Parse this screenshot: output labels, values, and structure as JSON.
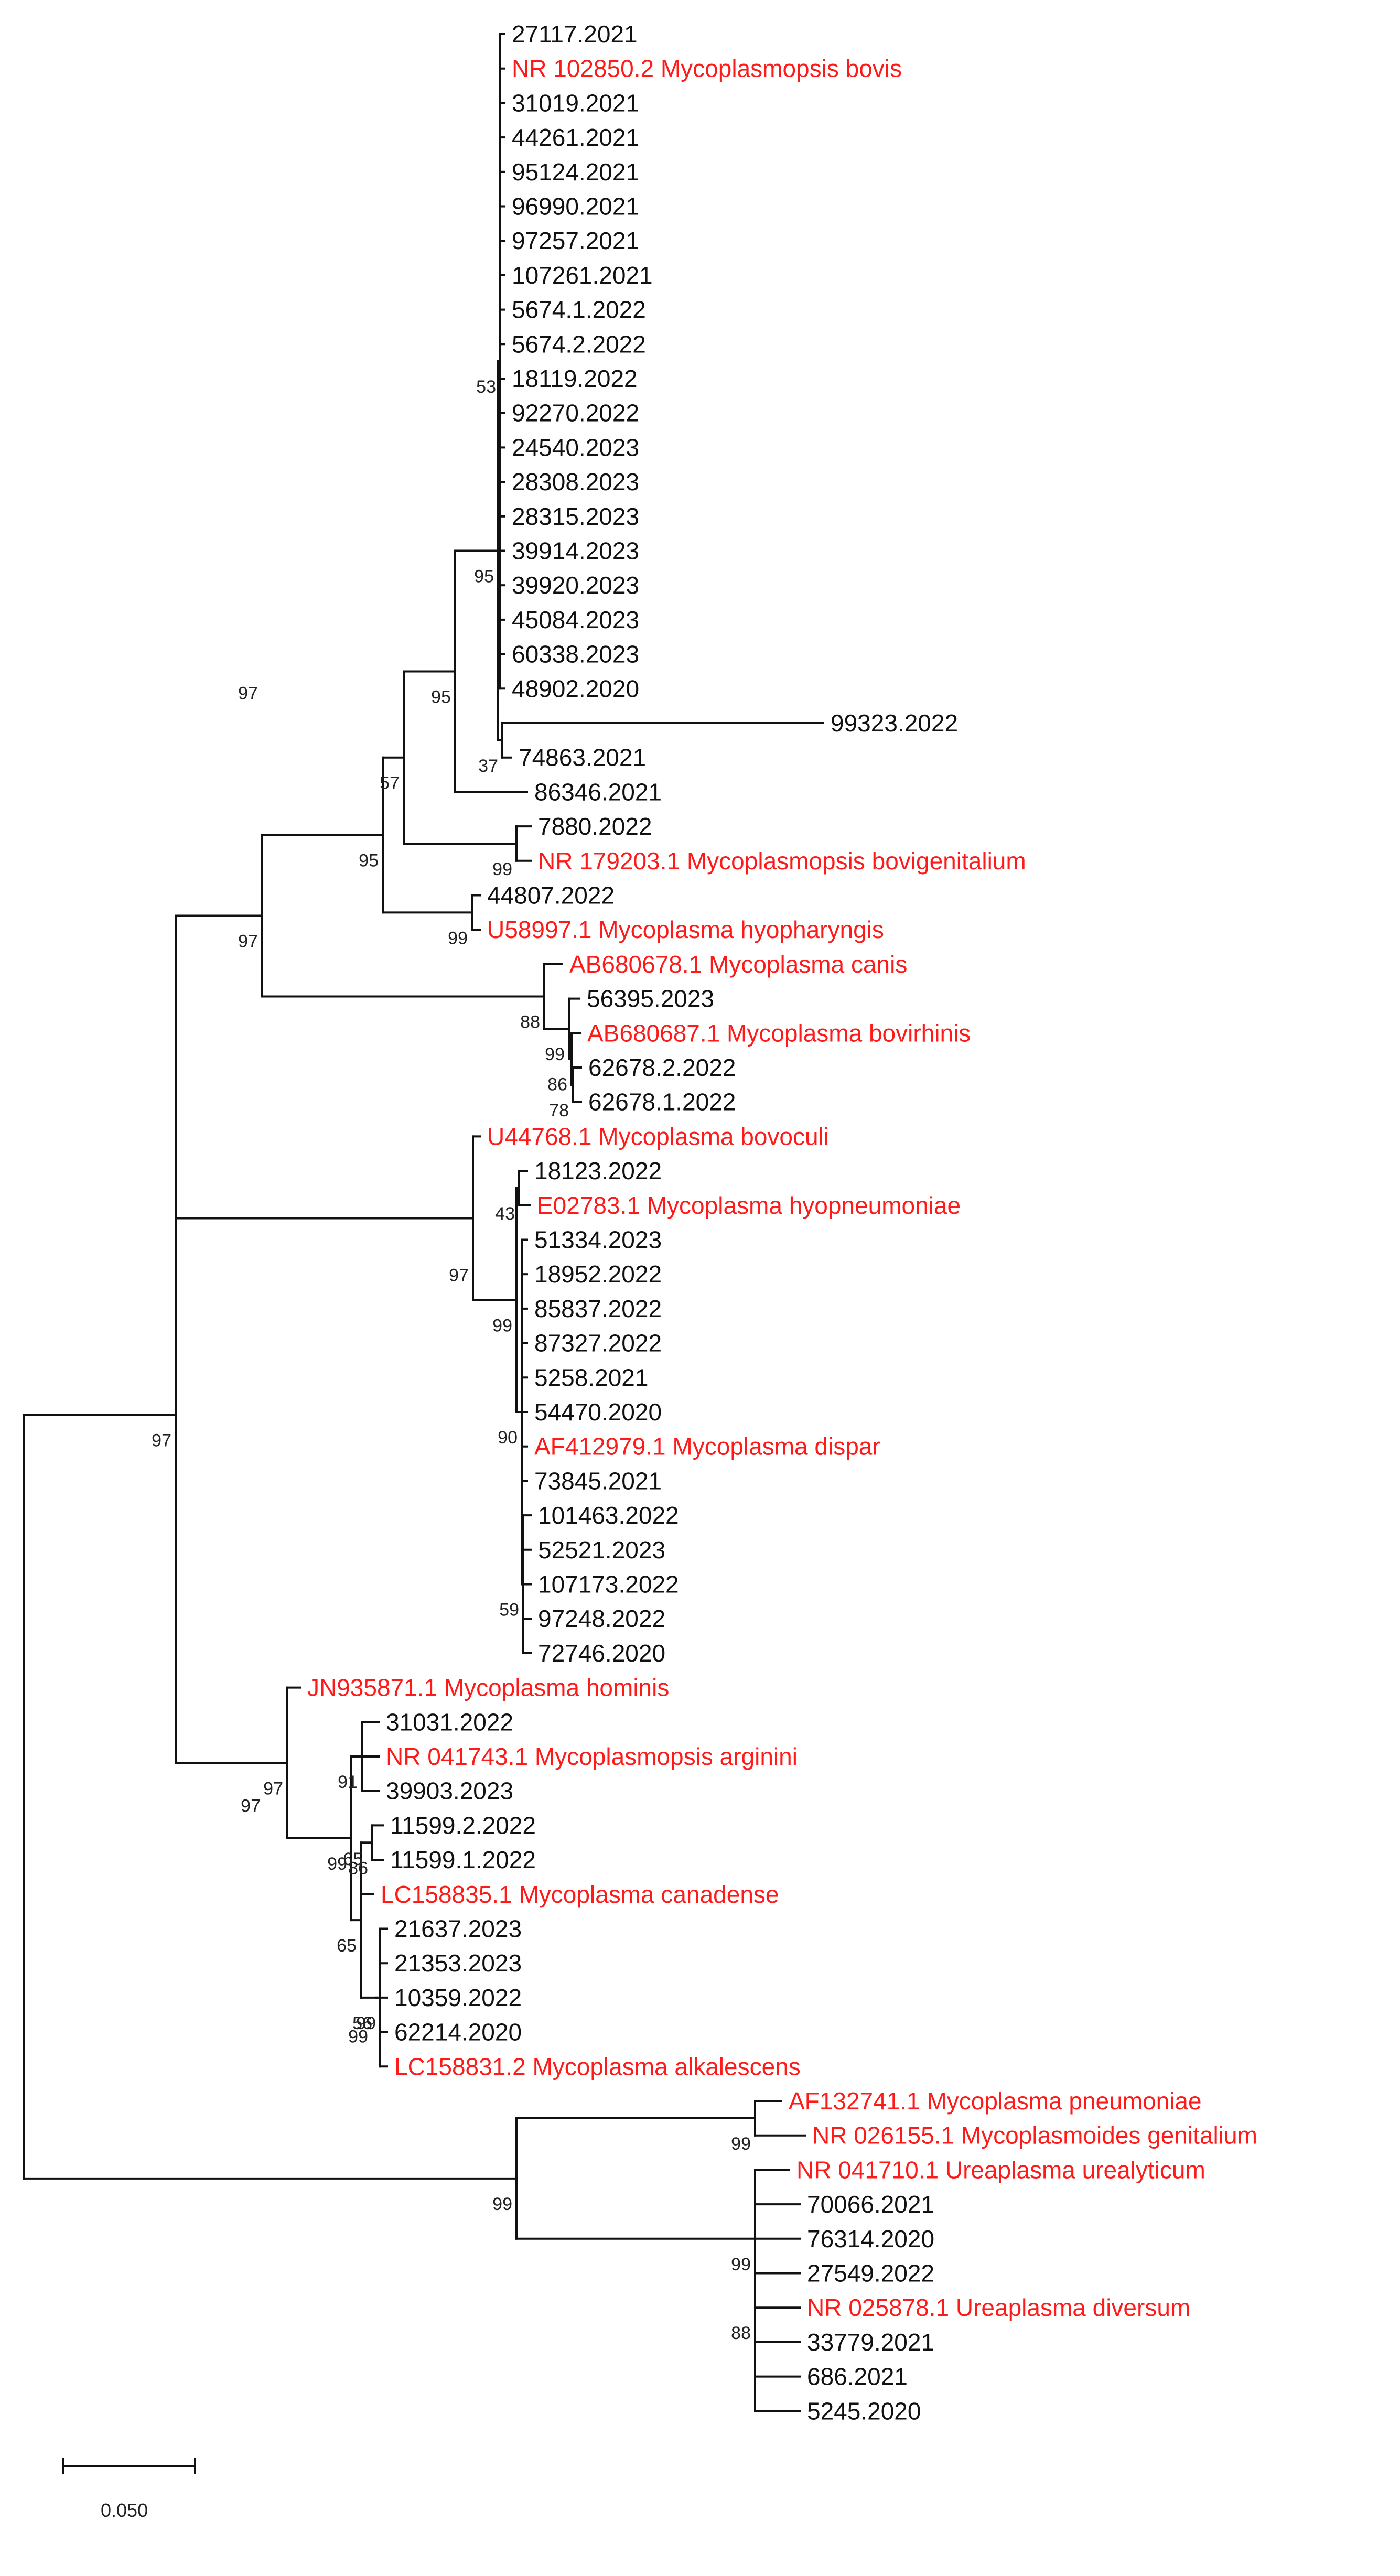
{
  "title": "Phylogenetic tree of Mycoplasma isolates and reference strains",
  "colors": {
    "reference": "#ff1a1a",
    "isolate": "#111111",
    "line": "#111111"
  },
  "scale_bar": {
    "label": "0.050",
    "value": 0.05
  },
  "leaves": [
    {
      "label": "27117.2021",
      "ref": false
    },
    {
      "label": "NR 102850.2 Mycoplasmopsis bovis",
      "ref": true
    },
    {
      "label": "31019.2021",
      "ref": false
    },
    {
      "label": "44261.2021",
      "ref": false
    },
    {
      "label": "95124.2021",
      "ref": false
    },
    {
      "label": "96990.2021",
      "ref": false
    },
    {
      "label": "97257.2021",
      "ref": false
    },
    {
      "label": "107261.2021",
      "ref": false
    },
    {
      "label": "5674.1.2022",
      "ref": false
    },
    {
      "label": "5674.2.2022",
      "ref": false
    },
    {
      "label": "18119.2022",
      "ref": false
    },
    {
      "label": "92270.2022",
      "ref": false
    },
    {
      "label": "24540.2023",
      "ref": false
    },
    {
      "label": "28308.2023",
      "ref": false
    },
    {
      "label": "28315.2023",
      "ref": false
    },
    {
      "label": "39914.2023",
      "ref": false
    },
    {
      "label": "39920.2023",
      "ref": false
    },
    {
      "label": "45084.2023",
      "ref": false
    },
    {
      "label": "60338.2023",
      "ref": false
    },
    {
      "label": "48902.2020",
      "ref": false
    },
    {
      "label": "99323.2022",
      "ref": false
    },
    {
      "label": "74863.2021",
      "ref": false
    },
    {
      "label": "86346.2021",
      "ref": false
    },
    {
      "label": "7880.2022",
      "ref": false
    },
    {
      "label": "NR 179203.1 Mycoplasmopsis bovigenitalium",
      "ref": true
    },
    {
      "label": "44807.2022",
      "ref": false
    },
    {
      "label": "U58997.1 Mycoplasma hyopharyngis",
      "ref": true
    },
    {
      "label": "AB680678.1 Mycoplasma canis",
      "ref": true
    },
    {
      "label": "56395.2023",
      "ref": false
    },
    {
      "label": "AB680687.1 Mycoplasma bovirhinis",
      "ref": true
    },
    {
      "label": "62678.2.2022",
      "ref": false
    },
    {
      "label": "62678.1.2022",
      "ref": false
    },
    {
      "label": "U44768.1 Mycoplasma bovoculi",
      "ref": true
    },
    {
      "label": "18123.2022",
      "ref": false
    },
    {
      "label": "E02783.1 Mycoplasma hyopneumoniae",
      "ref": true
    },
    {
      "label": "51334.2023",
      "ref": false
    },
    {
      "label": "18952.2022",
      "ref": false
    },
    {
      "label": "85837.2022",
      "ref": false
    },
    {
      "label": "87327.2022",
      "ref": false
    },
    {
      "label": "5258.2021",
      "ref": false
    },
    {
      "label": "54470.2020",
      "ref": false
    },
    {
      "label": "AF412979.1 Mycoplasma dispar",
      "ref": true
    },
    {
      "label": "73845.2021",
      "ref": false
    },
    {
      "label": "101463.2022",
      "ref": false
    },
    {
      "label": "52521.2023",
      "ref": false
    },
    {
      "label": "107173.2022",
      "ref": false
    },
    {
      "label": "97248.2022",
      "ref": false
    },
    {
      "label": "72746.2020",
      "ref": false
    },
    {
      "label": "JN935871.1 Mycoplasma hominis",
      "ref": true
    },
    {
      "label": "31031.2022",
      "ref": false
    },
    {
      "label": "NR 041743.1 Mycoplasmopsis arginini",
      "ref": true
    },
    {
      "label": "39903.2023",
      "ref": false
    },
    {
      "label": "11599.2.2022",
      "ref": false
    },
    {
      "label": "11599.1.2022",
      "ref": false
    },
    {
      "label": "LC158835.1 Mycoplasma canadense",
      "ref": true
    },
    {
      "label": "21637.2023",
      "ref": false
    },
    {
      "label": "21353.2023",
      "ref": false
    },
    {
      "label": "10359.2022",
      "ref": false
    },
    {
      "label": "62214.2020",
      "ref": false
    },
    {
      "label": "LC158831.2 Mycoplasma alkalescens",
      "ref": true
    },
    {
      "label": "AF132741.1 Mycoplasma pneumoniae",
      "ref": true
    },
    {
      "label": "NR 026155.1 Mycoplasmoides genitalium",
      "ref": true
    },
    {
      "label": "NR 041710.1 Ureaplasma urealyticum",
      "ref": true
    },
    {
      "label": "70066.2021",
      "ref": false
    },
    {
      "label": "76314.2020",
      "ref": false
    },
    {
      "label": "27549.2022",
      "ref": false
    },
    {
      "label": "NR 025878.1 Ureaplasma diversum",
      "ref": true
    },
    {
      "label": "33779.2021",
      "ref": false
    },
    {
      "label": "686.2021",
      "ref": false
    },
    {
      "label": "5245.2020",
      "ref": false
    }
  ],
  "bootstrap_values": [
    "53",
    "95",
    "95",
    "37",
    "57",
    "99",
    "95",
    "99",
    "88",
    "99",
    "86",
    "78",
    "97",
    "43",
    "99",
    "90",
    "59",
    "91",
    "97",
    "86",
    "99",
    "65",
    "56",
    "99",
    "99",
    "99",
    "99",
    "88"
  ]
}
